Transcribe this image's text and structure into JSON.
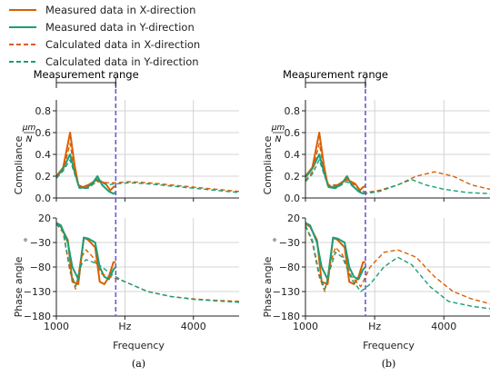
{
  "legend": [
    {
      "label": "Measured data in X-direction",
      "color": "#d95f02",
      "dash": false
    },
    {
      "label": "Measured data in Y-direction",
      "color": "#1b9e77",
      "dash": false
    },
    {
      "label": "Calculated data in X-direction",
      "color": "#d95f02",
      "dash": true
    },
    {
      "label": "Calculated data in Y-direction",
      "color": "#1b9e77",
      "dash": true
    }
  ],
  "chart_data": [
    {
      "panel": "(a)",
      "type": "line",
      "measurement_label": "Measurement range",
      "measurement_limit": 2300,
      "xlim": [
        1000,
        5000
      ],
      "xticks": [
        "1000",
        "Hz",
        "4000"
      ],
      "xtick_values": [
        1000,
        2500,
        4000
      ],
      "xlabel": "Frequency",
      "compliance": {
        "ylabel": "Compliance",
        "unit_num": "μm",
        "unit_den": "N",
        "ylim": [
          0,
          0.9
        ],
        "yticks": [
          "0.0",
          "0.2",
          "0.4",
          "0.6",
          "0.8"
        ],
        "ytick_values": [
          0,
          0.2,
          0.4,
          0.6,
          0.8
        ],
        "series": [
          {
            "color": "#d95f02",
            "dash": false,
            "x": [
              1000,
              1150,
              1300,
              1400,
              1480,
              1580,
              1700,
              1900,
              2080,
              2180,
              2250,
              2300
            ],
            "y": [
              0.2,
              0.28,
              0.6,
              0.3,
              0.12,
              0.1,
              0.12,
              0.17,
              0.13,
              0.07,
              0.1,
              0.11
            ]
          },
          {
            "color": "#1b9e77",
            "dash": false,
            "x": [
              1000,
              1150,
              1300,
              1400,
              1500,
              1650,
              1800,
              1900,
              2000,
              2150,
              2250,
              2300
            ],
            "y": [
              0.19,
              0.27,
              0.4,
              0.24,
              0.1,
              0.09,
              0.14,
              0.2,
              0.12,
              0.06,
              0.04,
              0.05
            ]
          },
          {
            "color": "#d95f02",
            "dash": true,
            "x": [
              1000,
              1150,
              1300,
              1400,
              1500,
              1700,
              1900,
              2100,
              2300,
              2600,
              3000,
              3500,
              4000,
              5000
            ],
            "y": [
              0.19,
              0.25,
              0.5,
              0.25,
              0.1,
              0.1,
              0.15,
              0.14,
              0.14,
              0.15,
              0.14,
              0.12,
              0.1,
              0.06
            ]
          },
          {
            "color": "#1b9e77",
            "dash": true,
            "x": [
              1000,
              1150,
              1300,
              1400,
              1500,
              1700,
              1900,
              2100,
              2300,
              2600,
              3000,
              3500,
              4000,
              5000
            ],
            "y": [
              0.18,
              0.25,
              0.35,
              0.22,
              0.09,
              0.09,
              0.16,
              0.12,
              0.13,
              0.14,
              0.13,
              0.11,
              0.09,
              0.05
            ]
          }
        ]
      },
      "phase": {
        "ylabel": "Phase angle",
        "unit": "°",
        "ylim": [
          -180,
          20
        ],
        "yticks": [
          "20",
          "−30",
          "−80",
          "−130",
          "−180"
        ],
        "ytick_values": [
          20,
          -30,
          -80,
          -130,
          -180
        ],
        "series": [
          {
            "color": "#d95f02",
            "dash": false,
            "x": [
              1000,
              1100,
              1250,
              1350,
              1480,
              1600,
              1700,
              1850,
              1950,
              2050,
              2150,
              2250,
              2300
            ],
            "y": [
              8,
              2,
              -25,
              -110,
              -115,
              -20,
              -25,
              -40,
              -110,
              -115,
              -100,
              -70,
              -70
            ]
          },
          {
            "color": "#1b9e77",
            "dash": false,
            "x": [
              1000,
              1100,
              1250,
              1350,
              1480,
              1600,
              1700,
              1850,
              1950,
              2050,
              2150,
              2250,
              2300
            ],
            "y": [
              10,
              5,
              -30,
              -80,
              -105,
              -20,
              -22,
              -30,
              -80,
              -100,
              -105,
              -85,
              -80
            ]
          },
          {
            "color": "#d95f02",
            "dash": true,
            "x": [
              1000,
              1150,
              1300,
              1420,
              1550,
              1650,
              1800,
              2000,
              2200,
              2500,
              3000,
              3500,
              4000,
              4500,
              5000
            ],
            "y": [
              8,
              -10,
              -90,
              -125,
              -60,
              -45,
              -60,
              -95,
              -100,
              -110,
              -130,
              -140,
              -145,
              -148,
              -150
            ]
          },
          {
            "color": "#1b9e77",
            "dash": true,
            "x": [
              1000,
              1150,
              1300,
              1420,
              1550,
              1650,
              1800,
              2000,
              2200,
              2500,
              3000,
              3500,
              4000,
              4500,
              5000
            ],
            "y": [
              9,
              -8,
              -85,
              -120,
              -75,
              -65,
              -70,
              -80,
              -95,
              -110,
              -130,
              -140,
              -146,
              -149,
              -152
            ]
          }
        ]
      }
    },
    {
      "panel": "(b)",
      "type": "line",
      "measurement_label": "Measurement range",
      "measurement_limit": 2300,
      "xlim": [
        1000,
        5000
      ],
      "xticks": [
        "1000",
        "Hz",
        "4000"
      ],
      "xtick_values": [
        1000,
        2500,
        4000
      ],
      "xlabel": "Frequency",
      "compliance": {
        "ylabel": "Compliance",
        "unit_num": "μm",
        "unit_den": "N",
        "ylim": [
          0,
          0.9
        ],
        "yticks": [
          "0.0",
          "0.2",
          "0.4",
          "0.6",
          "0.8"
        ],
        "ytick_values": [
          0,
          0.2,
          0.4,
          0.6,
          0.8
        ],
        "series": [
          {
            "color": "#d95f02",
            "dash": false,
            "x": [
              1000,
              1150,
              1300,
              1400,
              1480,
              1580,
              1700,
              1900,
              2080,
              2180,
              2250,
              2300
            ],
            "y": [
              0.2,
              0.28,
              0.6,
              0.3,
              0.12,
              0.1,
              0.12,
              0.17,
              0.13,
              0.07,
              0.1,
              0.11
            ]
          },
          {
            "color": "#1b9e77",
            "dash": false,
            "x": [
              1000,
              1150,
              1300,
              1400,
              1500,
              1650,
              1800,
              1900,
              2000,
              2150,
              2250,
              2300
            ],
            "y": [
              0.19,
              0.27,
              0.4,
              0.24,
              0.1,
              0.09,
              0.14,
              0.2,
              0.12,
              0.06,
              0.04,
              0.05
            ]
          },
          {
            "color": "#d95f02",
            "dash": true,
            "x": [
              1000,
              1150,
              1300,
              1400,
              1500,
              1700,
              1900,
              2100,
              2300,
              2600,
              3000,
              3400,
              3800,
              4200,
              4600,
              5000
            ],
            "y": [
              0.16,
              0.24,
              0.5,
              0.27,
              0.12,
              0.12,
              0.18,
              0.1,
              0.05,
              0.07,
              0.12,
              0.2,
              0.24,
              0.2,
              0.12,
              0.08
            ]
          },
          {
            "color": "#1b9e77",
            "dash": true,
            "x": [
              1000,
              1150,
              1300,
              1400,
              1500,
              1700,
              1900,
              2100,
              2300,
              2600,
              3000,
              3300,
              3600,
              4000,
              4500,
              5000
            ],
            "y": [
              0.15,
              0.22,
              0.35,
              0.22,
              0.1,
              0.1,
              0.15,
              0.08,
              0.04,
              0.06,
              0.12,
              0.17,
              0.12,
              0.08,
              0.05,
              0.04
            ]
          }
        ]
      },
      "phase": {
        "ylabel": "Phase angle",
        "unit": "°",
        "ylim": [
          -180,
          20
        ],
        "yticks": [
          "20",
          "−30",
          "−80",
          "−130",
          "−180"
        ],
        "ytick_values": [
          20,
          -30,
          -80,
          -130,
          -180
        ],
        "series": [
          {
            "color": "#d95f02",
            "dash": false,
            "x": [
              1000,
              1100,
              1250,
              1350,
              1480,
              1600,
              1700,
              1850,
              1950,
              2050,
              2150,
              2250,
              2300
            ],
            "y": [
              8,
              2,
              -25,
              -110,
              -115,
              -20,
              -25,
              -40,
              -110,
              -115,
              -100,
              -70,
              -70
            ]
          },
          {
            "color": "#1b9e77",
            "dash": false,
            "x": [
              1000,
              1100,
              1250,
              1350,
              1480,
              1600,
              1700,
              1850,
              1950,
              2050,
              2150,
              2250,
              2300
            ],
            "y": [
              10,
              5,
              -30,
              -80,
              -105,
              -20,
              -22,
              -30,
              -80,
              -100,
              -105,
              -85,
              -80
            ]
          },
          {
            "color": "#d95f02",
            "dash": true,
            "x": [
              1000,
              1150,
              1300,
              1420,
              1550,
              1650,
              1800,
              2000,
              2200,
              2400,
              2700,
              3000,
              3400,
              3800,
              4200,
              4600,
              5000
            ],
            "y": [
              5,
              -30,
              -100,
              -130,
              -70,
              -40,
              -55,
              -100,
              -120,
              -80,
              -50,
              -45,
              -60,
              -100,
              -130,
              -145,
              -155
            ]
          },
          {
            "color": "#1b9e77",
            "dash": true,
            "x": [
              1000,
              1150,
              1300,
              1420,
              1550,
              1650,
              1800,
              2000,
              2200,
              2400,
              2700,
              3000,
              3300,
              3700,
              4100,
              4600,
              5000
            ],
            "y": [
              4,
              -25,
              -95,
              -125,
              -80,
              -50,
              -60,
              -105,
              -130,
              -115,
              -80,
              -60,
              -75,
              -120,
              -150,
              -160,
              -165
            ]
          }
        ]
      }
    }
  ],
  "panel_labels": [
    "(a)",
    "(b)"
  ]
}
